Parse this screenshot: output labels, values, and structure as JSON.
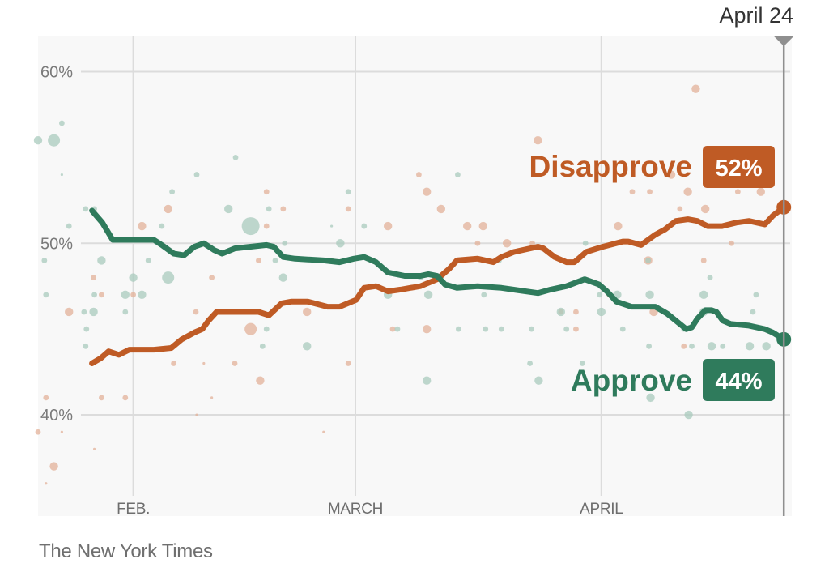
{
  "chart_data": {
    "type": "line",
    "title": "",
    "xlabel": "",
    "ylabel": "",
    "x_unit": "day of year (Feb. 1 = 31, March 1 = 59, April 1 = 90)",
    "xlim": [
      19,
      114
    ],
    "ylim": [
      34.1,
      62.1
    ],
    "grid": true,
    "y_ticks": [
      {
        "value": 60,
        "label": "60%"
      },
      {
        "value": 50,
        "label": "50%"
      },
      {
        "value": 40,
        "label": "40%"
      }
    ],
    "x_ticks": [
      {
        "value": 31,
        "label": "FEB."
      },
      {
        "value": 59,
        "label": "MARCH"
      },
      {
        "value": 90,
        "label": "APRIL"
      }
    ],
    "current_marker": {
      "value": 113,
      "label": "April 24"
    },
    "series": [
      {
        "name": "Disapprove",
        "current_label": "52%",
        "color": "#bf5b25",
        "dot_color": "#e3b29a",
        "values": [
          [
            25.8,
            43.0
          ],
          [
            26.9,
            43.3
          ],
          [
            27.9,
            43.7
          ],
          [
            29.2,
            43.5
          ],
          [
            30.5,
            43.8
          ],
          [
            33.6,
            43.8
          ],
          [
            35.8,
            43.9
          ],
          [
            37.1,
            44.4
          ],
          [
            38.7,
            44.8
          ],
          [
            39.7,
            45.0
          ],
          [
            40.5,
            45.5
          ],
          [
            41.5,
            46.0
          ],
          [
            43.8,
            46.0
          ],
          [
            46.8,
            46.0
          ],
          [
            48.1,
            45.8
          ],
          [
            49.7,
            46.5
          ],
          [
            50.9,
            46.6
          ],
          [
            53.0,
            46.6
          ],
          [
            55.5,
            46.3
          ],
          [
            57.0,
            46.3
          ],
          [
            59.1,
            46.7
          ],
          [
            60.1,
            47.4
          ],
          [
            61.6,
            47.5
          ],
          [
            63.1,
            47.2
          ],
          [
            64.7,
            47.3
          ],
          [
            67.2,
            47.5
          ],
          [
            69.3,
            47.9
          ],
          [
            70.8,
            48.5
          ],
          [
            71.8,
            49.0
          ],
          [
            74.4,
            49.1
          ],
          [
            76.4,
            48.9
          ],
          [
            77.4,
            49.2
          ],
          [
            79.0,
            49.5
          ],
          [
            82.0,
            49.8
          ],
          [
            82.7,
            49.7
          ],
          [
            84.1,
            49.2
          ],
          [
            85.6,
            48.9
          ],
          [
            86.6,
            48.9
          ],
          [
            88.1,
            49.5
          ],
          [
            90.2,
            49.8
          ],
          [
            92.7,
            50.1
          ],
          [
            93.4,
            50.1
          ],
          [
            95.0,
            49.9
          ],
          [
            96.8,
            50.5
          ],
          [
            98.0,
            50.8
          ],
          [
            99.4,
            51.3
          ],
          [
            100.9,
            51.4
          ],
          [
            102.1,
            51.3
          ],
          [
            103.4,
            51.0
          ],
          [
            105.2,
            51.0
          ],
          [
            107.0,
            51.2
          ],
          [
            108.6,
            51.3
          ],
          [
            110.6,
            51.1
          ],
          [
            111.6,
            51.6
          ],
          [
            113.0,
            52.1
          ]
        ],
        "polls": [
          [
            19.0,
            39,
            2
          ],
          [
            21.0,
            37,
            3
          ],
          [
            20.0,
            36,
            1
          ],
          [
            22.0,
            39,
            1
          ],
          [
            20.0,
            41,
            2
          ],
          [
            22.9,
            46,
            3
          ],
          [
            26.1,
            38,
            1
          ],
          [
            27.0,
            41,
            2
          ],
          [
            26.0,
            48,
            2
          ],
          [
            27.0,
            47,
            2
          ],
          [
            30.0,
            41,
            2
          ],
          [
            31.0,
            47,
            2
          ],
          [
            32.1,
            51,
            3
          ],
          [
            35.4,
            52,
            3
          ],
          [
            36.1,
            43,
            2
          ],
          [
            39.0,
            40,
            1
          ],
          [
            39.9,
            43,
            1
          ],
          [
            38.9,
            46,
            2
          ],
          [
            40.9,
            48,
            2
          ],
          [
            40.9,
            41,
            1
          ],
          [
            47.0,
            42,
            3
          ],
          [
            45.8,
            45,
            4
          ],
          [
            43.8,
            43,
            2
          ],
          [
            46.8,
            49,
            2
          ],
          [
            47.8,
            53,
            2
          ],
          [
            49.9,
            52,
            2
          ],
          [
            47.8,
            51,
            2
          ],
          [
            55.0,
            39,
            1
          ],
          [
            52.9,
            46,
            3
          ],
          [
            56.0,
            49,
            2
          ],
          [
            58.1,
            43,
            2
          ],
          [
            58.1,
            52,
            2
          ],
          [
            58.1,
            49,
            2
          ],
          [
            63.1,
            51,
            3
          ],
          [
            63.7,
            45,
            2
          ],
          [
            67.0,
            54,
            2
          ],
          [
            68.0,
            53,
            3
          ],
          [
            68.0,
            45,
            3
          ],
          [
            69.8,
            52,
            3
          ],
          [
            72.1,
            49,
            2
          ],
          [
            73.1,
            51,
            3
          ],
          [
            74.4,
            50,
            2
          ],
          [
            75.1,
            51,
            3
          ],
          [
            78.1,
            50,
            3
          ],
          [
            82.0,
            56,
            3
          ],
          [
            81.3,
            50,
            2
          ],
          [
            84.9,
            46,
            2
          ],
          [
            86.8,
            46,
            2
          ],
          [
            86.8,
            45,
            2
          ],
          [
            91.0,
            47,
            2
          ],
          [
            92.1,
            51,
            3
          ],
          [
            93.9,
            53,
            2
          ],
          [
            95.9,
            49,
            3
          ],
          [
            96.1,
            53,
            2
          ],
          [
            96.6,
            46,
            3
          ],
          [
            98.8,
            54,
            3
          ],
          [
            99.9,
            52,
            2
          ],
          [
            100.9,
            53,
            3
          ],
          [
            101.9,
            59,
            3
          ],
          [
            102.9,
            49,
            2
          ],
          [
            103.1,
            52,
            3
          ],
          [
            107.2,
            53,
            2
          ],
          [
            110.1,
            53,
            3
          ],
          [
            106.4,
            50,
            2
          ],
          [
            100.4,
            44,
            2
          ]
        ]
      },
      {
        "name": "Approve",
        "current_label": "44%",
        "color": "#2f7b5c",
        "dot_color": "#a9cbbd",
        "values": [
          [
            25.8,
            51.9
          ],
          [
            27.1,
            51.2
          ],
          [
            28.4,
            50.2
          ],
          [
            31.0,
            50.2
          ],
          [
            33.6,
            50.2
          ],
          [
            34.6,
            49.9
          ],
          [
            36.1,
            49.4
          ],
          [
            37.4,
            49.3
          ],
          [
            38.7,
            49.8
          ],
          [
            39.9,
            50.0
          ],
          [
            41.2,
            49.6
          ],
          [
            42.2,
            49.4
          ],
          [
            43.8,
            49.7
          ],
          [
            45.8,
            49.8
          ],
          [
            47.8,
            49.9
          ],
          [
            48.7,
            49.8
          ],
          [
            49.9,
            49.2
          ],
          [
            51.4,
            49.1
          ],
          [
            55.0,
            49.0
          ],
          [
            57.0,
            48.9
          ],
          [
            58.8,
            49.1
          ],
          [
            60.1,
            49.2
          ],
          [
            61.6,
            48.9
          ],
          [
            63.1,
            48.3
          ],
          [
            65.2,
            48.1
          ],
          [
            67.2,
            48.1
          ],
          [
            68.2,
            48.2
          ],
          [
            69.3,
            48.1
          ],
          [
            70.3,
            47.6
          ],
          [
            71.8,
            47.4
          ],
          [
            74.4,
            47.5
          ],
          [
            77.4,
            47.4
          ],
          [
            82.0,
            47.1
          ],
          [
            83.6,
            47.3
          ],
          [
            85.6,
            47.5
          ],
          [
            87.9,
            47.9
          ],
          [
            89.7,
            47.6
          ],
          [
            90.7,
            47.2
          ],
          [
            91.9,
            46.6
          ],
          [
            93.8,
            46.3
          ],
          [
            96.8,
            46.3
          ],
          [
            98.3,
            45.9
          ],
          [
            99.9,
            45.3
          ],
          [
            100.7,
            45.0
          ],
          [
            101.4,
            45.1
          ],
          [
            102.1,
            45.6
          ],
          [
            103.1,
            46.1
          ],
          [
            103.9,
            46.1
          ],
          [
            104.5,
            46.0
          ],
          [
            105.3,
            45.5
          ],
          [
            106.3,
            45.3
          ],
          [
            108.6,
            45.2
          ],
          [
            110.6,
            45.0
          ],
          [
            111.6,
            44.8
          ],
          [
            113.0,
            44.4
          ]
        ],
        "polls": [
          [
            19.0,
            56,
            3
          ],
          [
            21.0,
            56,
            4
          ],
          [
            22.0,
            57,
            2
          ],
          [
            22.0,
            54,
            1
          ],
          [
            22.9,
            51,
            2
          ],
          [
            25.0,
            52,
            2
          ],
          [
            26.1,
            52,
            2
          ],
          [
            27.0,
            49,
            3
          ],
          [
            24.8,
            46,
            2
          ],
          [
            19.8,
            49,
            2
          ],
          [
            20.0,
            47,
            2
          ],
          [
            26.1,
            47,
            2
          ],
          [
            26.0,
            46,
            3
          ],
          [
            25.1,
            45,
            2
          ],
          [
            25.0,
            44,
            2
          ],
          [
            30.0,
            47,
            3
          ],
          [
            31.0,
            48,
            3
          ],
          [
            32.1,
            47,
            3
          ],
          [
            32.9,
            49,
            2
          ],
          [
            30.0,
            46,
            2
          ],
          [
            35.9,
            53,
            2
          ],
          [
            39.0,
            54,
            2
          ],
          [
            34.6,
            51,
            2
          ],
          [
            35.4,
            48,
            4
          ],
          [
            43.0,
            52,
            3
          ],
          [
            43.9,
            55,
            2
          ],
          [
            45.8,
            51,
            5
          ],
          [
            48.1,
            52,
            2
          ],
          [
            48.9,
            49,
            2
          ],
          [
            50.1,
            50,
            2
          ],
          [
            49.9,
            48,
            3
          ],
          [
            47.8,
            45,
            2
          ],
          [
            47.3,
            44,
            2
          ],
          [
            52.9,
            44,
            3
          ],
          [
            56.0,
            51,
            1
          ],
          [
            58.1,
            53,
            2
          ],
          [
            57.1,
            50,
            3
          ],
          [
            60.1,
            51,
            2
          ],
          [
            63.1,
            47,
            3
          ],
          [
            64.3,
            45,
            2
          ],
          [
            67.2,
            48,
            2
          ],
          [
            68.2,
            47,
            3
          ],
          [
            68.0,
            42,
            3
          ],
          [
            71.9,
            54,
            2
          ],
          [
            72.3,
            49,
            2
          ],
          [
            75.2,
            47,
            2
          ],
          [
            72.0,
            45,
            2
          ],
          [
            75.4,
            45,
            2
          ],
          [
            77.4,
            45,
            2
          ],
          [
            77.1,
            49,
            2
          ],
          [
            81.2,
            45,
            2
          ],
          [
            81.0,
            43,
            2
          ],
          [
            82.1,
            42,
            3
          ],
          [
            84.9,
            46,
            3
          ],
          [
            85.6,
            45,
            2
          ],
          [
            87.6,
            43,
            2
          ],
          [
            88.0,
            50,
            2
          ],
          [
            89.8,
            47,
            2
          ],
          [
            90.0,
            46,
            3
          ],
          [
            92.0,
            47,
            3
          ],
          [
            92.7,
            45,
            2
          ],
          [
            95.9,
            49,
            2
          ],
          [
            96.1,
            47,
            3
          ],
          [
            96.0,
            44,
            2
          ],
          [
            96.2,
            41,
            3
          ],
          [
            100.4,
            45,
            2
          ],
          [
            102.9,
            47,
            3
          ],
          [
            102.9,
            46,
            3
          ],
          [
            103.9,
            44,
            3
          ],
          [
            101.0,
            40,
            3
          ],
          [
            109.1,
            46,
            2
          ],
          [
            108.7,
            44,
            3
          ],
          [
            110.8,
            44,
            3
          ],
          [
            109.5,
            47,
            2
          ],
          [
            101.4,
            44,
            2
          ],
          [
            103.7,
            48,
            2
          ],
          [
            105.3,
            44,
            2
          ]
        ]
      }
    ],
    "source": "The New York Times"
  }
}
